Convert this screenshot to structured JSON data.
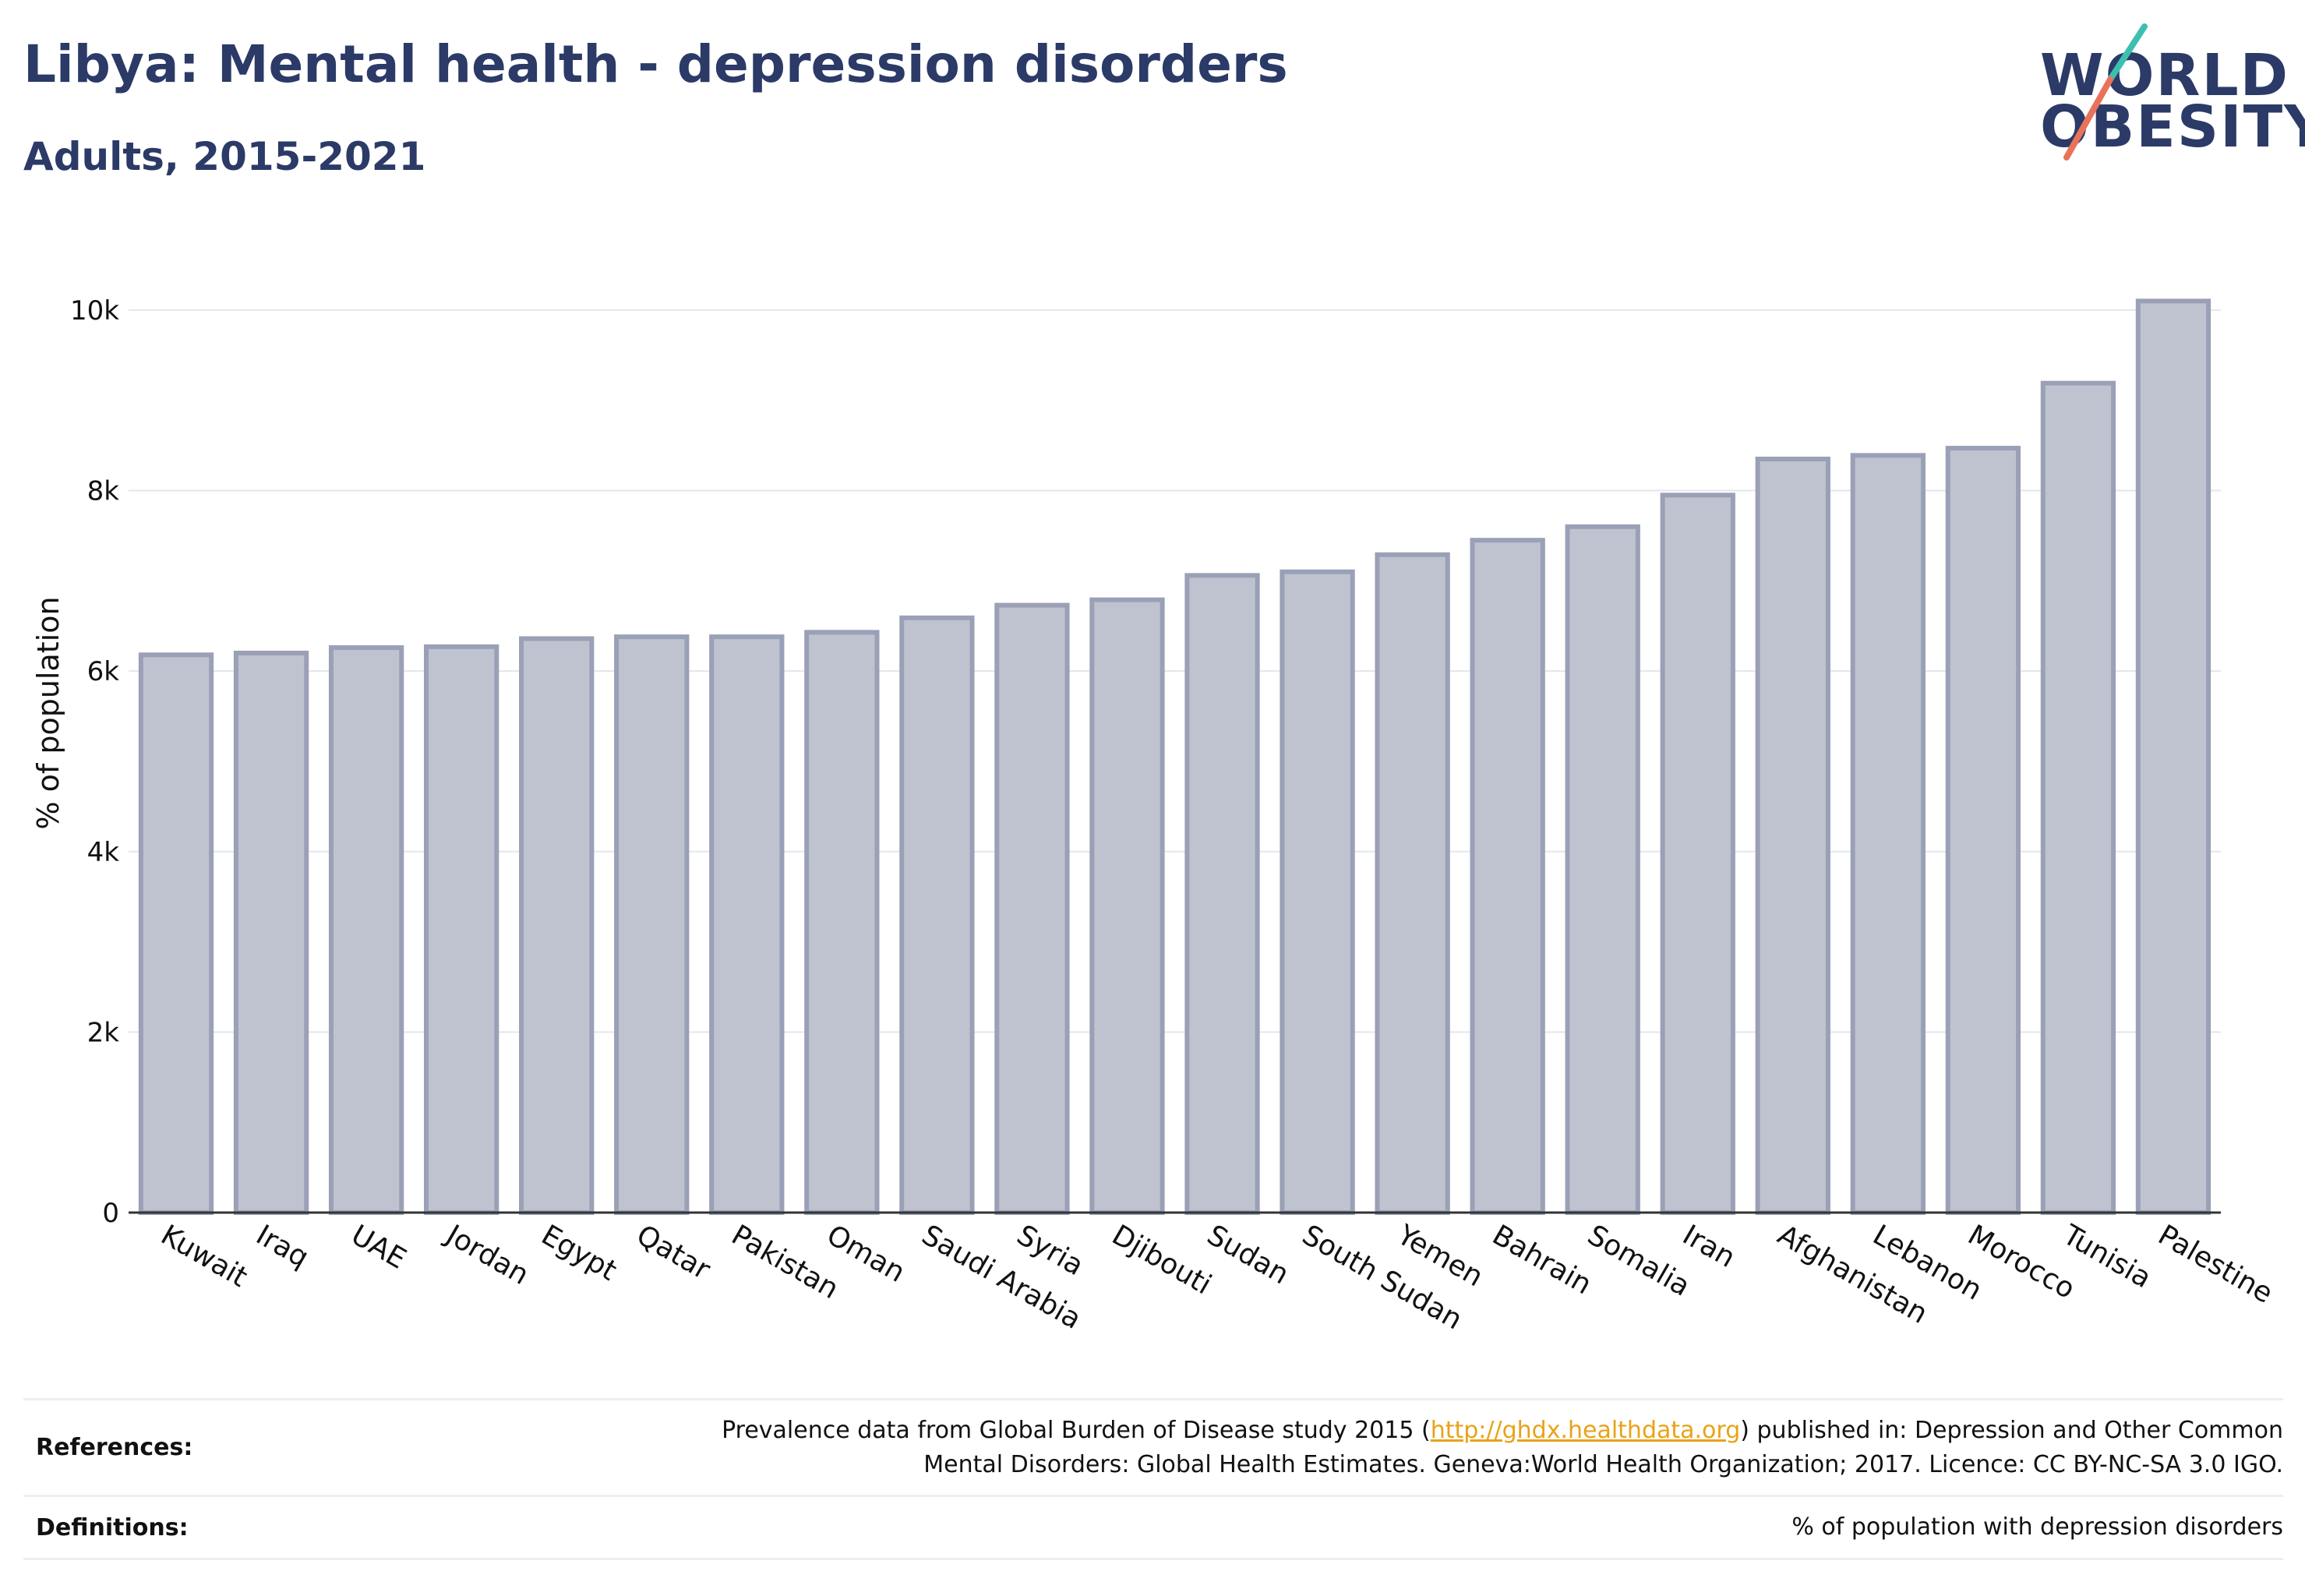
{
  "header": {
    "title": "Libya: Mental health - depression disorders",
    "subtitle": "Adults, 2015-2021"
  },
  "logo": {
    "line1": "WORLD",
    "line2": "OBESITY",
    "accent_colors": [
      "#3cbfae",
      "#e8735a"
    ]
  },
  "chart_data": {
    "type": "bar",
    "ylabel": "% of population",
    "ylim": [
      0,
      10500
    ],
    "yticks": [
      0,
      2000,
      4000,
      6000,
      8000,
      10000
    ],
    "ytick_labels": [
      "0",
      "2k",
      "4k",
      "6k",
      "8k",
      "10k"
    ],
    "grid": true,
    "bar_color": "#bfc3d0",
    "bar_edge_color": "#9aa0b6",
    "categories": [
      "Kuwait",
      "Iraq",
      "UAE",
      "Jordan",
      "Egypt",
      "Qatar",
      "Pakistan",
      "Oman",
      "Saudi Arabia",
      "Syria",
      "Djibouti",
      "Sudan",
      "South Sudan",
      "Yemen",
      "Bahrain",
      "Somalia",
      "Iran",
      "Afghanistan",
      "Lebanon",
      "Morocco",
      "Tunisia",
      "Palestine"
    ],
    "values": [
      6180,
      6200,
      6260,
      6270,
      6360,
      6380,
      6380,
      6430,
      6590,
      6730,
      6790,
      7060,
      7100,
      7290,
      7450,
      7600,
      7950,
      8350,
      8390,
      8470,
      9190,
      10100
    ]
  },
  "references": {
    "label": "References:",
    "text_before": "Prevalence data from Global Burden of Disease study 2015 (",
    "link": "http://ghdx.healthdata.org",
    "text_after": ") published in: Depression and Other Common",
    "line2": "Mental Disorders: Global Health Estimates. Geneva:World Health Organization; 2017. Licence: CC BY-NC-SA 3.0 IGO."
  },
  "definitions": {
    "label": "Definitions:",
    "text": "% of population with depression disorders"
  }
}
